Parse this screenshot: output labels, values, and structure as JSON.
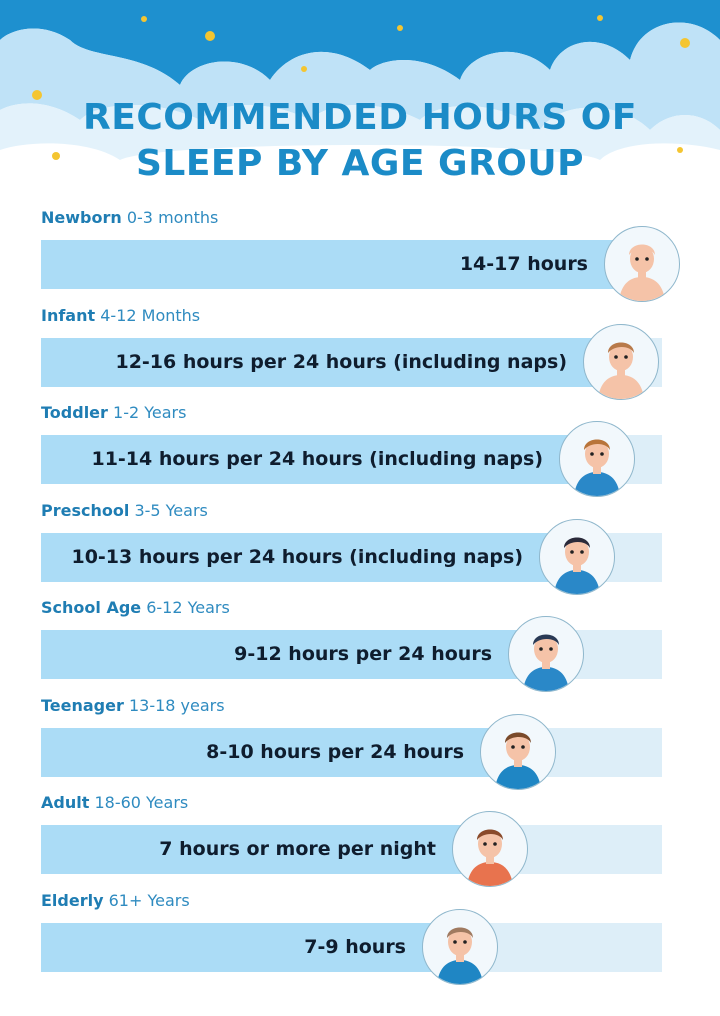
{
  "title_line1": "RECOMMENDED HOURS OF",
  "title_line2": "SLEEP BY AGE GROUP",
  "colors": {
    "title": "#1b8bc7",
    "sky_dark": "#1e90cf",
    "cloud": "#bfe2f7",
    "bar_fill": "#abdcf6",
    "bar_track": "#ddeef8",
    "star": "#f4c531"
  },
  "groups": [
    {
      "name": "Newborn",
      "age": "0-3 months",
      "hours": "14-17 hours",
      "icon": "newborn-baby-icon"
    },
    {
      "name": "Infant",
      "age": "4-12 Months",
      "hours": "12-16 hours per 24 hours (including naps)",
      "icon": "infant-icon"
    },
    {
      "name": "Toddler",
      "age": "1-2 Years",
      "hours": "11-14 hours per 24 hours (including naps)",
      "icon": "toddler-icon"
    },
    {
      "name": "Preschool",
      "age": "3-5 Years",
      "hours": "10-13 hours per 24 hours (including naps)",
      "icon": "preschool-child-icon"
    },
    {
      "name": "School Age",
      "age": "6-12 Years",
      "hours": "9-12 hours per 24 hours",
      "icon": "school-child-icon"
    },
    {
      "name": "Teenager",
      "age": "13-18 years",
      "hours": "8-10 hours per 24 hours",
      "icon": "teenager-icon"
    },
    {
      "name": "Adult",
      "age": "18-60 Years",
      "hours": "7 hours or more per night",
      "icon": "adult-icon"
    },
    {
      "name": "Elderly",
      "age": "61+ Years",
      "hours": "7-9 hours",
      "icon": "elderly-icon"
    }
  ]
}
